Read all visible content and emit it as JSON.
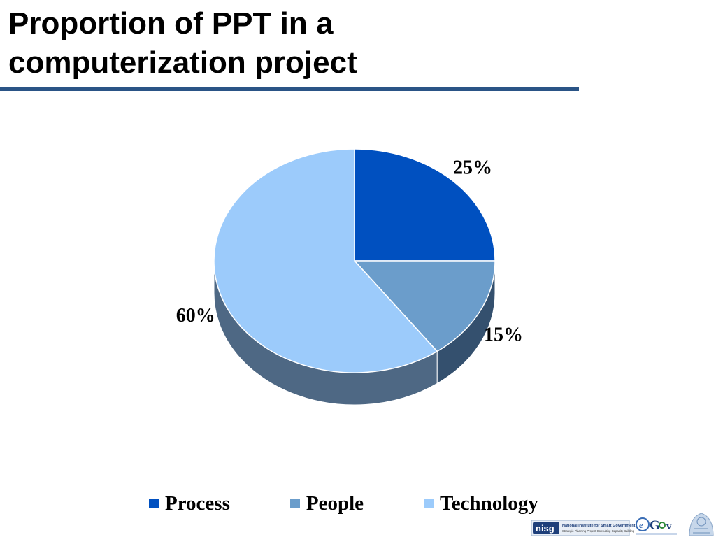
{
  "title": "Proportion of PPT in a computerization project",
  "colors": {
    "title_rule": "#2a5486",
    "process": "#0050c0",
    "people": "#6b9dcb",
    "technology": "#9ccbfb",
    "side_dark": "#34506e",
    "side_mid": "#4e6884"
  },
  "chart_data": {
    "type": "pie",
    "title": "Proportion of PPT in a computerization project",
    "categories": [
      "Process",
      "People",
      "Technology"
    ],
    "values": [
      25,
      15,
      60
    ],
    "labels": [
      "25%",
      "15%",
      "60%"
    ],
    "style": "3d",
    "legend_position": "bottom"
  },
  "footer": {
    "logo1_name": "nisg-logo",
    "logo1_text": "National Institute for Smart Government",
    "logo1_subtext": "Strategic Planning·Project Consulting·Capacity Building",
    "logo2_name": "egov-logo",
    "logo3_name": "emblem-logo"
  }
}
